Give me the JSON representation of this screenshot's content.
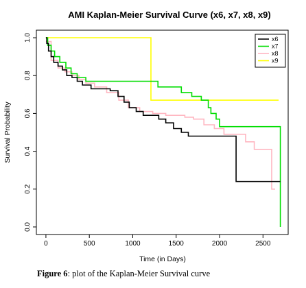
{
  "chart_data": {
    "type": "line",
    "step": true,
    "title": "AMI Kaplan-Meier Survival Curve (x6, x7, x8, x9)",
    "xlabel": "Time (in Days)",
    "ylabel": "Survival Probability",
    "xlim": [
      -110,
      2790
    ],
    "ylim": [
      -0.04,
      1.04
    ],
    "xticks": [
      0,
      500,
      1000,
      1500,
      2000,
      2500
    ],
    "xtick_labels": [
      "0",
      "500",
      "1000",
      "1500",
      "2000",
      "2500"
    ],
    "yticks": [
      0.0,
      0.2,
      0.4,
      0.6,
      0.8,
      1.0
    ],
    "ytick_labels": [
      "0.0",
      "0.2",
      "0.4",
      "0.6",
      "0.8",
      "1.0"
    ],
    "grid": false,
    "legend_position": "top-right",
    "series": [
      {
        "name": "x6",
        "color": "#000000",
        "x": [
          0,
          10,
          30,
          60,
          90,
          140,
          190,
          240,
          300,
          360,
          420,
          520,
          640,
          740,
          830,
          900,
          960,
          1040,
          1120,
          1200,
          1300,
          1380,
          1470,
          1560,
          1640,
          1730,
          2000,
          2190,
          2290,
          2700
        ],
        "y": [
          1.0,
          0.97,
          0.93,
          0.9,
          0.87,
          0.85,
          0.83,
          0.8,
          0.79,
          0.77,
          0.75,
          0.73,
          0.73,
          0.72,
          0.69,
          0.66,
          0.63,
          0.61,
          0.59,
          0.59,
          0.57,
          0.55,
          0.52,
          0.5,
          0.48,
          0.48,
          0.48,
          0.24,
          0.24,
          0.24
        ]
      },
      {
        "name": "x7",
        "color": "#00dd00",
        "x": [
          0,
          20,
          60,
          100,
          160,
          230,
          290,
          360,
          460,
          1290,
          1560,
          1680,
          1790,
          1870,
          1900,
          1960,
          2000,
          2350,
          2680,
          2700
        ],
        "y": [
          1.0,
          0.96,
          0.93,
          0.9,
          0.87,
          0.84,
          0.81,
          0.79,
          0.77,
          0.74,
          0.71,
          0.69,
          0.67,
          0.63,
          0.6,
          0.57,
          0.53,
          0.53,
          0.53,
          0.0
        ]
      },
      {
        "name": "x8",
        "color": "#ffb6c1",
        "x": [
          0,
          60,
          140,
          220,
          300,
          380,
          460,
          560,
          700,
          840,
          950,
          1080,
          1230,
          1380,
          1500,
          1600,
          1700,
          1820,
          1940,
          2050,
          2180,
          2300,
          2400,
          2600,
          2640
        ],
        "y": [
          0.98,
          0.88,
          0.84,
          0.82,
          0.8,
          0.78,
          0.76,
          0.74,
          0.71,
          0.67,
          0.63,
          0.61,
          0.6,
          0.59,
          0.59,
          0.58,
          0.57,
          0.54,
          0.52,
          0.49,
          0.49,
          0.45,
          0.41,
          0.2,
          0.2
        ]
      },
      {
        "name": "x9",
        "color": "#ffff00",
        "x": [
          0,
          1210,
          2680
        ],
        "y": [
          1.0,
          0.67,
          0.67
        ]
      }
    ]
  },
  "caption": {
    "label": "Figure 6",
    "text": ": plot of the Kaplan-Meier Survival curve"
  }
}
